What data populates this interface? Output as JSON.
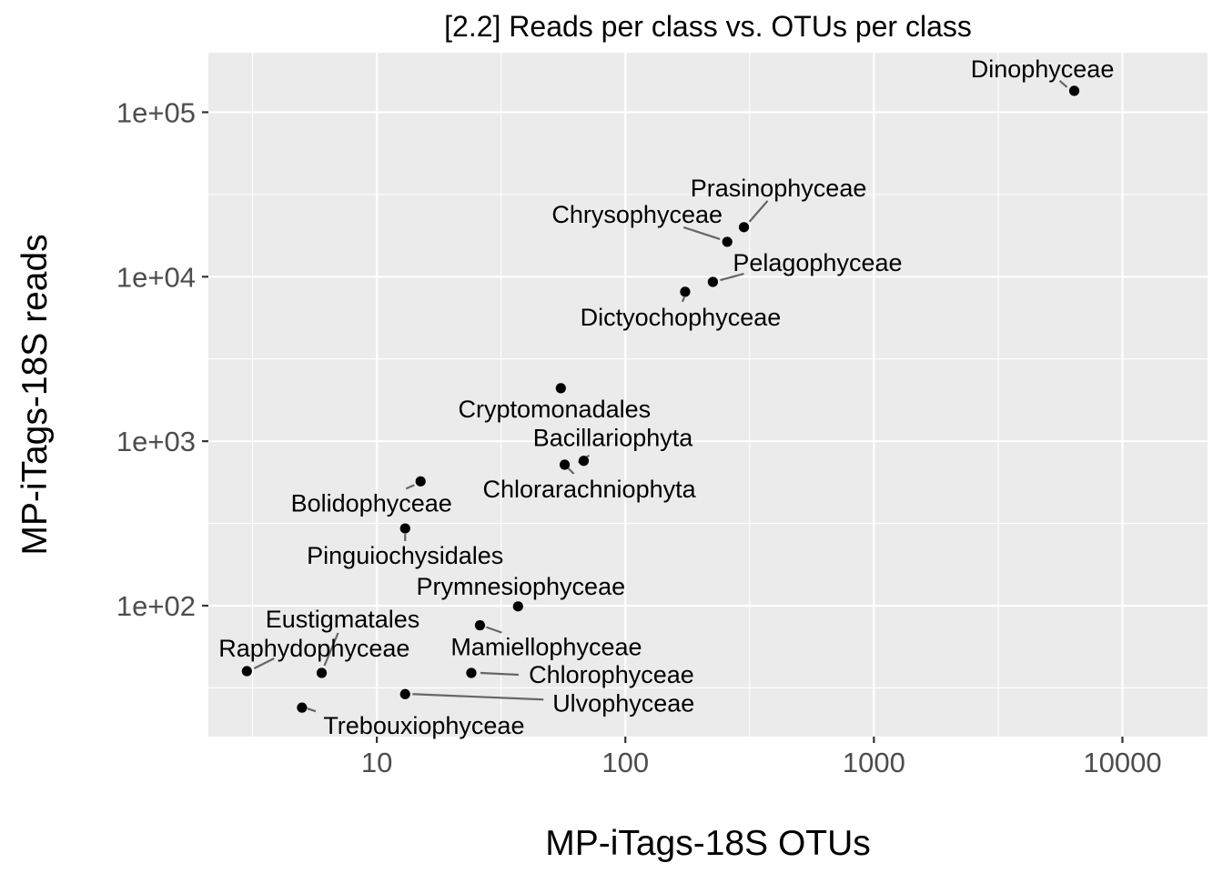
{
  "chart_data": {
    "type": "scatter",
    "title": "[2.2] Reads per class vs. OTUs per class",
    "xlabel": "MP-iTags-18S OTUs",
    "ylabel": "MP-iTags-18S reads",
    "x_scale": "log10",
    "y_scale": "log10",
    "xlim": [
      2.1,
      22000
    ],
    "ylim": [
      16,
      230000
    ],
    "x_ticks": [
      10,
      100,
      1000,
      10000
    ],
    "x_tick_labels": [
      "10",
      "100",
      "1000",
      "10000"
    ],
    "y_ticks": [
      100,
      1000,
      10000,
      100000
    ],
    "y_tick_labels": [
      "1e+02",
      "1e+03",
      "1e+04",
      "1e+05"
    ],
    "grid": true,
    "legend": "none",
    "colors": {
      "panel_background": "#ebebeb",
      "grid": "#ffffff",
      "point": "#000000",
      "leader_line": "#666666",
      "tick_label": "#4d4d4d"
    },
    "points": [
      {
        "label": "Dinophyceae",
        "x": 6400,
        "y": 135000
      },
      {
        "label": "Prasinophyceae",
        "x": 300,
        "y": 20000
      },
      {
        "label": "Chrysophyceae",
        "x": 257,
        "y": 16300
      },
      {
        "label": "Pelagophyceae",
        "x": 225,
        "y": 9300
      },
      {
        "label": "Dictyochophyceae",
        "x": 174,
        "y": 8100
      },
      {
        "label": "Cryptomonadales",
        "x": 55,
        "y": 2100
      },
      {
        "label": "Bacillariophyta",
        "x": 68,
        "y": 760
      },
      {
        "label": "Chlorarachniophyta",
        "x": 57,
        "y": 720
      },
      {
        "label": "Bolidophyceae",
        "x": 15,
        "y": 570
      },
      {
        "label": "Pinguiochysidales",
        "x": 13,
        "y": 295
      },
      {
        "label": "Prymnesiophyceae",
        "x": 37,
        "y": 99
      },
      {
        "label": "Mamiellophyceae",
        "x": 26,
        "y": 76
      },
      {
        "label": "Eustigmatales",
        "x": 6,
        "y": 39
      },
      {
        "label": "Raphydophyceae",
        "x": 3,
        "y": 40
      },
      {
        "label": "Chlorophyceae",
        "x": 24,
        "y": 39
      },
      {
        "label": "Ulvophyceae",
        "x": 13,
        "y": 29
      },
      {
        "label": "Trebouxiophyceae",
        "x": 5,
        "y": 24
      }
    ]
  }
}
